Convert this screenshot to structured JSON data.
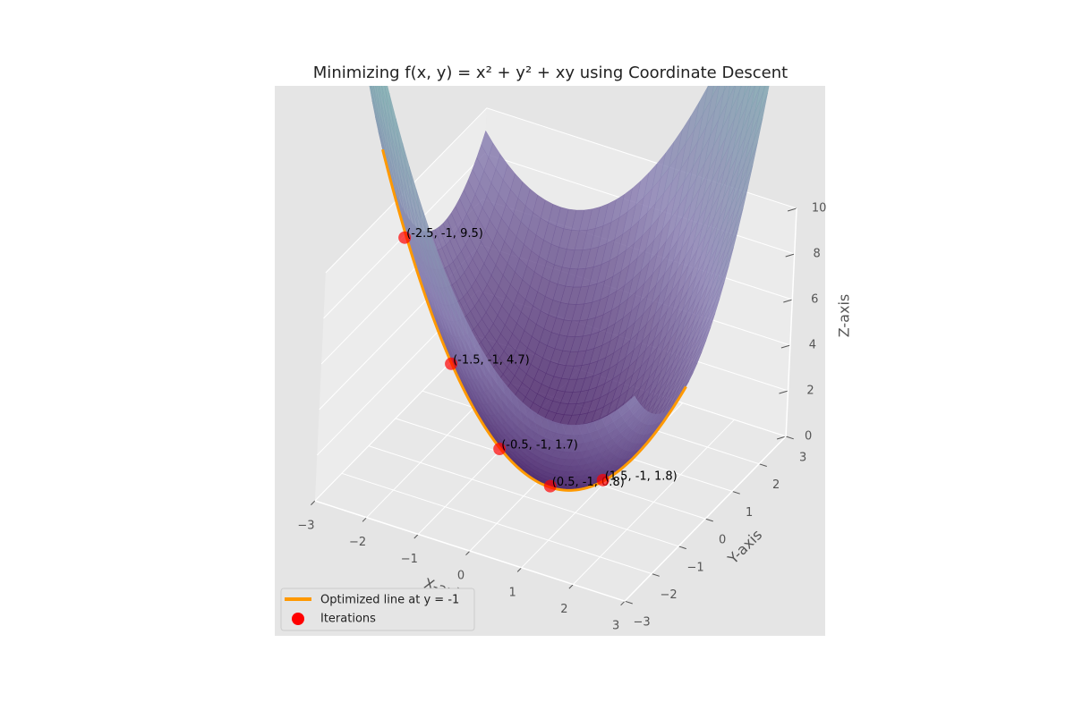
{
  "chart_data": {
    "type": "surface3d",
    "title": "Minimizing f(x, y) = x² + y² + xy using Coordinate Descent",
    "x_label": "X-axis",
    "y_label": "Y-axis",
    "z_label": "Z-axis",
    "xlim": [
      -3,
      3
    ],
    "ylim": [
      -3,
      3
    ],
    "zlim": [
      0,
      10
    ],
    "xticks": [
      {
        "value": -3,
        "label": "−3"
      },
      {
        "value": -2,
        "label": "−2"
      },
      {
        "value": -1,
        "label": "−1"
      },
      0,
      1,
      2,
      3
    ],
    "yticks": [
      {
        "value": -3,
        "label": "−3"
      },
      {
        "value": -2,
        "label": "−2"
      },
      {
        "value": -1,
        "label": "−1"
      },
      0,
      1,
      2,
      3
    ],
    "zticks": [
      0,
      2,
      4,
      6,
      8,
      10
    ],
    "line": {
      "name": "Optimized line at y = -1",
      "color": "#ff9900",
      "y": -1
    },
    "points": {
      "name": "Iterations",
      "color": "#ff0000",
      "x": [
        -2.5,
        -1.5,
        -0.5,
        0.5,
        1.5
      ],
      "y": [
        -1,
        -1,
        -1,
        -1,
        -1
      ],
      "z": [
        9.5,
        4.7,
        1.7,
        0.8,
        1.8
      ],
      "value_labels": [
        "(-2.5, -1, 9.5)",
        "(-1.5, -1, 4.7)",
        "(-0.5, -1, 1.7)",
        "(0.5, -1, 0.8)",
        "(1.5, -1, 1.8)"
      ]
    },
    "grid": true
  }
}
